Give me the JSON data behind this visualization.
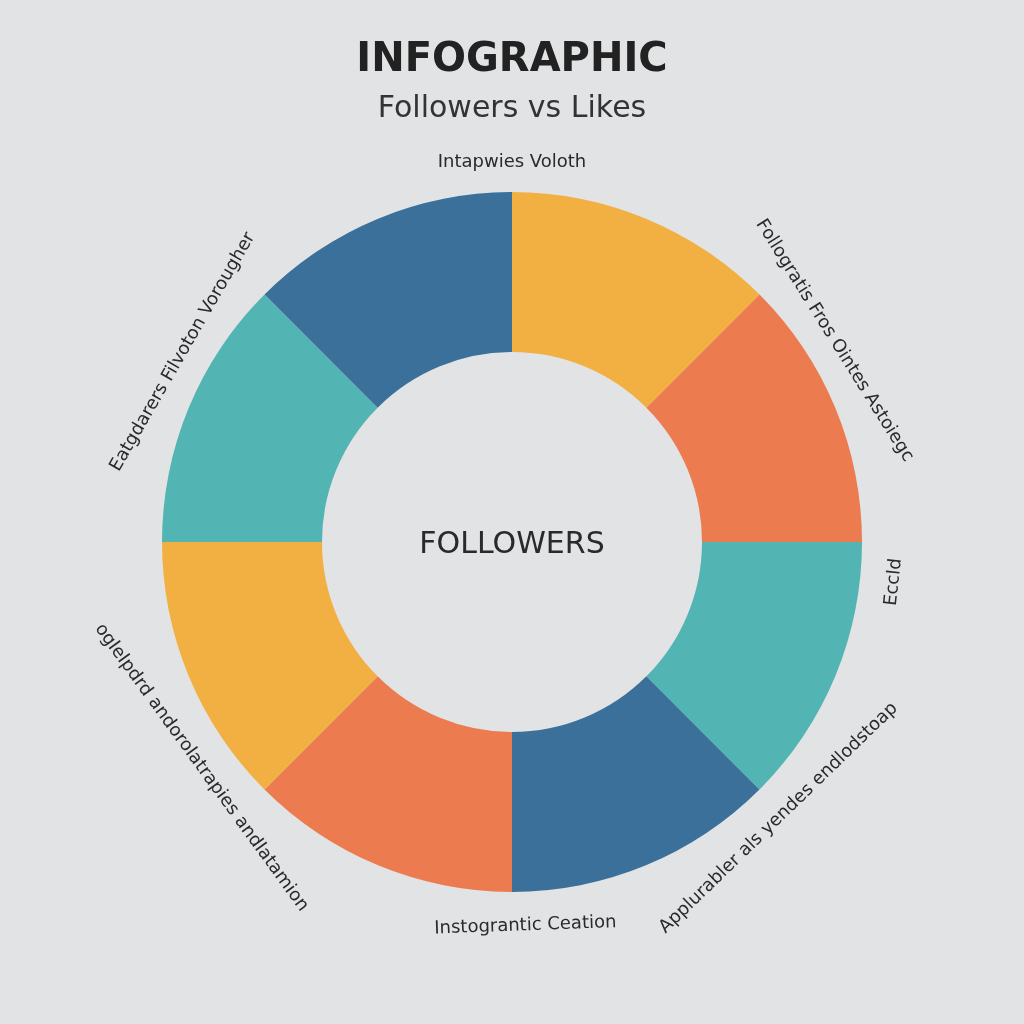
{
  "chart_data": {
    "type": "donut",
    "title": "INFOGRAPHIC",
    "subtitle": "Followers vs Likes",
    "categories": [
      null,
      null,
      null,
      null,
      null,
      null,
      null,
      null
    ],
    "values": [
      12.5,
      12.5,
      12.5,
      12.5,
      12.5,
      12.5,
      12.5,
      12.5
    ],
    "colors": [
      "#f2b042",
      "#ec7b4f",
      "#52b4b3",
      "#3a7099",
      "#ec7b4f",
      "#f2b042",
      "#52b4b3",
      "#3a7099"
    ],
    "annotations": [
      "FOLLOWERS",
      "Intapwies Voloth",
      "Follogratis Fros Ointes Astoiegc",
      "Eccld",
      "Applurabler als yendes endlodstoap",
      "Instograntic Ceation",
      "oglelpdrd andorolatrapies andlatamion",
      "Eatgdarers Filvoton Vorougher"
    ]
  }
}
